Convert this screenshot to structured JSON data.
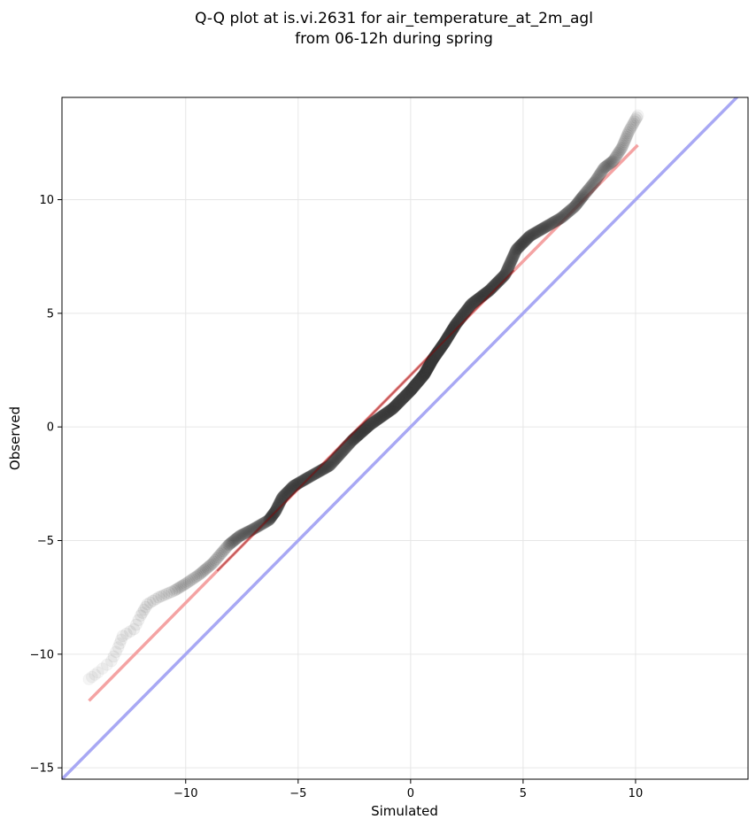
{
  "chart_data": {
    "type": "scatter",
    "title_lines": [
      "Q-Q plot at is.vi.2631 for air_temperature_at_2m_agl",
      "from 06-12h during spring"
    ],
    "xlabel": "Simulated",
    "ylabel": "Observed",
    "xlim": [
      -15.5,
      15
    ],
    "ylim": [
      -15.5,
      14.5
    ],
    "xticks": [
      -10,
      -5,
      0,
      5,
      10
    ],
    "yticks": [
      -15,
      -10,
      -5,
      0,
      5,
      10
    ],
    "xtick_labels": [
      "−10",
      "−5",
      "0",
      "5",
      "10"
    ],
    "ytick_labels": [
      "−15",
      "−10",
      "−5",
      "0",
      "5",
      "10"
    ],
    "grid": true,
    "colors": {
      "points": "#3a3a3a",
      "fit_line": "#f4a3a3",
      "fit_line_dense": "#8b0000",
      "identity_line": "#a8a8f4",
      "grid": "#e6e6e6"
    },
    "quantile_curve": [
      [
        -14.3,
        -11.1
      ],
      [
        -13.9,
        -10.8
      ],
      [
        -13.3,
        -10.3
      ],
      [
        -13.0,
        -9.7
      ],
      [
        -12.8,
        -9.2
      ],
      [
        -12.3,
        -8.9
      ],
      [
        -12.0,
        -8.3
      ],
      [
        -11.7,
        -7.8
      ],
      [
        -11.2,
        -7.5
      ],
      [
        -10.5,
        -7.2
      ],
      [
        -10.0,
        -6.9
      ],
      [
        -9.4,
        -6.5
      ],
      [
        -8.8,
        -6.0
      ],
      [
        -8.1,
        -5.2
      ],
      [
        -7.6,
        -4.8
      ],
      [
        -7.0,
        -4.5
      ],
      [
        -6.3,
        -4.1
      ],
      [
        -6.0,
        -3.7
      ],
      [
        -5.7,
        -3.1
      ],
      [
        -5.2,
        -2.6
      ],
      [
        -4.5,
        -2.2
      ],
      [
        -3.6,
        -1.7
      ],
      [
        -2.6,
        -0.6
      ],
      [
        -1.8,
        0.1
      ],
      [
        -0.8,
        0.8
      ],
      [
        0.0,
        1.6
      ],
      [
        0.6,
        2.3
      ],
      [
        1.0,
        3.0
      ],
      [
        1.5,
        3.7
      ],
      [
        2.0,
        4.5
      ],
      [
        2.7,
        5.4
      ],
      [
        3.5,
        6.0
      ],
      [
        4.2,
        6.7
      ],
      [
        4.7,
        7.8
      ],
      [
        5.3,
        8.4
      ],
      [
        6.0,
        8.8
      ],
      [
        6.7,
        9.2
      ],
      [
        7.3,
        9.7
      ],
      [
        7.7,
        10.2
      ],
      [
        8.2,
        10.8
      ],
      [
        8.6,
        11.4
      ],
      [
        9.0,
        11.7
      ],
      [
        9.4,
        12.3
      ],
      [
        9.7,
        13.0
      ],
      [
        10.1,
        13.7
      ]
    ],
    "fit_line": {
      "x": [
        -14.3,
        10.1
      ],
      "y": [
        -12.05,
        12.4
      ]
    },
    "identity_line": {
      "x": [
        -15.5,
        15
      ],
      "y": [
        -15.5,
        15
      ]
    }
  }
}
